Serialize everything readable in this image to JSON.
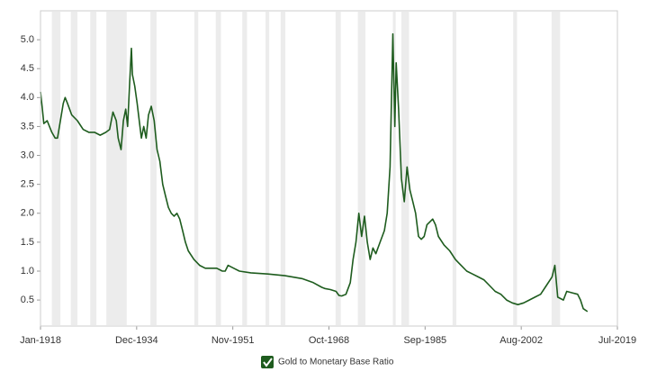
{
  "chart_data": {
    "type": "line",
    "x": [
      "1918-01",
      "1918-05",
      "1918-08",
      "1919-03",
      "1920-01",
      "1920-08",
      "1921-01",
      "1921-07",
      "1922-01",
      "1922-05",
      "1922-10",
      "1923-07",
      "1924-07",
      "1925-07",
      "1926-07",
      "1927-07",
      "1928-07",
      "1929-07",
      "1930-03",
      "1930-10",
      "1931-05",
      "1931-09",
      "1932-03",
      "1932-08",
      "1933-01",
      "1933-05",
      "1933-09",
      "1934-01",
      "1934-03",
      "1934-08",
      "1935-01",
      "1935-07",
      "1935-10",
      "1936-03",
      "1936-08",
      "1937-01",
      "1937-07",
      "1938-01",
      "1938-07",
      "1939-01",
      "1939-07",
      "1940-01",
      "1940-07",
      "1941-01",
      "1941-07",
      "1942-01",
      "1942-07",
      "1943-01",
      "1943-07",
      "1944-01",
      "1945-01",
      "1946-01",
      "1947-01",
      "1948-01",
      "1949-01",
      "1950-01",
      "1950-07",
      "1951-01",
      "1952-01",
      "1953-01",
      "1955-01",
      "1958-01",
      "1961-01",
      "1964-01",
      "1966-01",
      "1967-07",
      "1968-01",
      "1969-01",
      "1970-01",
      "1970-07",
      "1971-01",
      "1971-10",
      "1972-07",
      "1973-01",
      "1973-07",
      "1974-01",
      "1974-07",
      "1975-01",
      "1975-07",
      "1976-01",
      "1976-07",
      "1977-01",
      "1977-10",
      "1978-07",
      "1979-01",
      "1979-07",
      "1980-01",
      "1980-05",
      "1980-08",
      "1981-01",
      "1981-07",
      "1982-01",
      "1982-07",
      "1983-01",
      "1983-07",
      "1984-01",
      "1984-07",
      "1985-01",
      "1985-07",
      "1986-01",
      "1987-01",
      "1987-07",
      "1988-01",
      "1989-01",
      "1990-01",
      "1991-01",
      "1992-01",
      "1993-01",
      "1994-01",
      "1995-01",
      "1996-01",
      "1997-01",
      "1998-01",
      "1999-01",
      "2000-01",
      "2001-01",
      "2002-01",
      "2003-01",
      "2004-01",
      "2005-01",
      "2006-01",
      "2007-01",
      "2008-01",
      "2008-07",
      "2009-01",
      "2010-01",
      "2010-08",
      "2012-07",
      "2013-01",
      "2013-07",
      "2014-04"
    ],
    "series": [
      {
        "name": "Gold to Monetary Base Ratio",
        "color": "#1e5c1e",
        "values": [
          4.1,
          3.8,
          3.55,
          3.6,
          3.4,
          3.3,
          3.3,
          3.6,
          3.9,
          4.0,
          3.9,
          3.7,
          3.6,
          3.45,
          3.4,
          3.4,
          3.35,
          3.4,
          3.45,
          3.75,
          3.6,
          3.3,
          3.1,
          3.6,
          3.8,
          3.5,
          4.2,
          4.85,
          4.4,
          4.2,
          3.9,
          3.5,
          3.3,
          3.5,
          3.3,
          3.7,
          3.85,
          3.6,
          3.1,
          2.9,
          2.5,
          2.3,
          2.1,
          2.0,
          1.95,
          2.0,
          1.9,
          1.7,
          1.5,
          1.35,
          1.2,
          1.1,
          1.05,
          1.05,
          1.05,
          1.0,
          1.0,
          1.1,
          1.05,
          1.0,
          0.97,
          0.95,
          0.92,
          0.87,
          0.8,
          0.72,
          0.7,
          0.68,
          0.65,
          0.58,
          0.57,
          0.6,
          0.8,
          1.2,
          1.5,
          2.0,
          1.6,
          1.95,
          1.5,
          1.2,
          1.4,
          1.3,
          1.5,
          1.7,
          2.0,
          2.8,
          5.1,
          3.5,
          4.6,
          3.8,
          2.6,
          2.2,
          2.8,
          2.4,
          2.2,
          2.0,
          1.6,
          1.55,
          1.6,
          1.8,
          1.9,
          1.8,
          1.6,
          1.45,
          1.35,
          1.2,
          1.1,
          1.0,
          0.95,
          0.9,
          0.85,
          0.75,
          0.65,
          0.6,
          0.5,
          0.45,
          0.42,
          0.45,
          0.5,
          0.55,
          0.6,
          0.75,
          0.9,
          1.1,
          0.55,
          0.5,
          0.65,
          0.6,
          0.5,
          0.35,
          0.3
        ]
      }
    ],
    "shaded_periods": [
      [
        "1920-01",
        "1921-07"
      ],
      [
        "1923-05",
        "1924-07"
      ],
      [
        "1926-10",
        "1927-11"
      ],
      [
        "1929-08",
        "1933-03"
      ],
      [
        "1937-05",
        "1938-06"
      ],
      [
        "1945-02",
        "1945-10"
      ],
      [
        "1948-11",
        "1949-10"
      ],
      [
        "1953-07",
        "1954-05"
      ],
      [
        "1957-08",
        "1958-04"
      ],
      [
        "1960-04",
        "1961-02"
      ],
      [
        "1969-12",
        "1970-11"
      ],
      [
        "1973-11",
        "1975-03"
      ],
      [
        "1980-01",
        "1980-07"
      ],
      [
        "1981-07",
        "1982-11"
      ],
      [
        "1990-07",
        "1991-03"
      ],
      [
        "2001-03",
        "2001-11"
      ],
      [
        "2007-12",
        "2009-06"
      ]
    ],
    "xlim": [
      "1918-01",
      "2019-07"
    ],
    "xticks": [
      {
        "value": "1918-01",
        "label": "Jan-1918"
      },
      {
        "value": "1934-12",
        "label": "Dec-1934"
      },
      {
        "value": "1951-11",
        "label": "Nov-1951"
      },
      {
        "value": "1968-10",
        "label": "Oct-1968"
      },
      {
        "value": "1985-09",
        "label": "Sep-1985"
      },
      {
        "value": "2002-08",
        "label": "Aug-2002"
      },
      {
        "value": "2019-07",
        "label": "Jul-2019"
      }
    ],
    "ylim": [
      0.05,
      5.5
    ],
    "yticks": [
      0.5,
      {
        "value": 1,
        "label": "1.0"
      },
      1.5,
      {
        "value": 2,
        "label": "2.0"
      },
      2.5,
      {
        "value": 3,
        "label": "3.0"
      },
      3.5,
      {
        "value": 4,
        "label": "4.0"
      },
      4.5,
      {
        "value": 5,
        "label": "5.0"
      }
    ],
    "shade_color": "#ececec",
    "grid": false
  }
}
